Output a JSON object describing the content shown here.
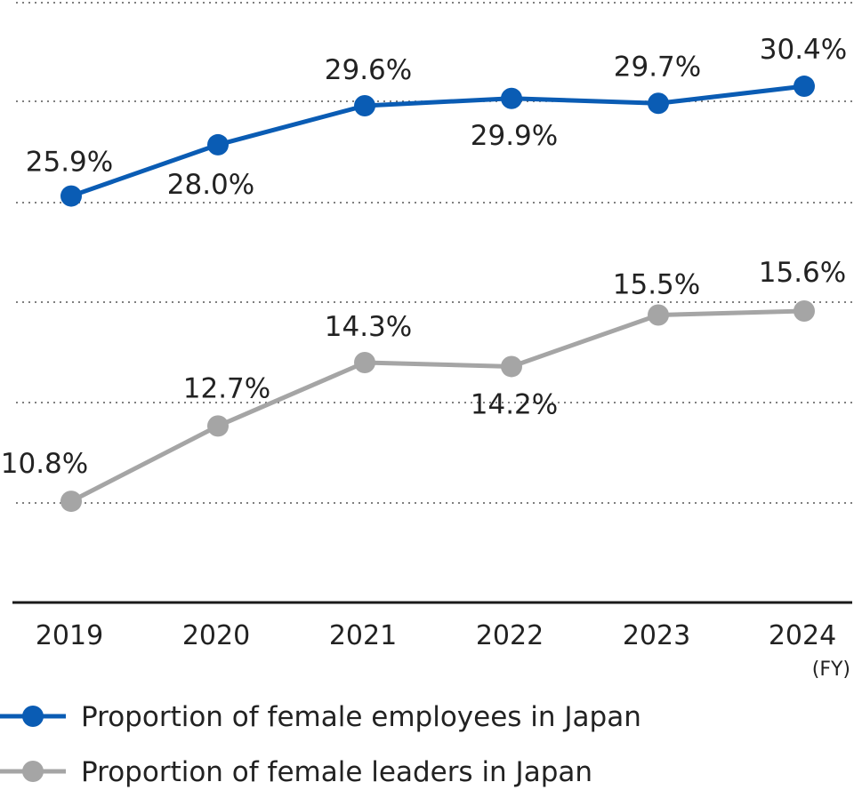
{
  "chart_data": {
    "type": "line",
    "categories": [
      "2019",
      "2020",
      "2021",
      "2022",
      "2023",
      "2024"
    ],
    "x_unit": "(FY)",
    "grid": "dotted horizontal",
    "legend_position": "bottom-left",
    "series": [
      {
        "name": "Proportion of female employees in Japan",
        "color": "#0a5cb4",
        "values": [
          25.9,
          28.0,
          29.6,
          29.9,
          29.7,
          30.4
        ],
        "labels": [
          "25.9%",
          "28.0%",
          "29.6%",
          "29.9%",
          "29.7%",
          "30.4%"
        ]
      },
      {
        "name": "Proportion of female leaders in Japan",
        "color": "#a5a5a5",
        "values": [
          10.8,
          12.7,
          14.3,
          14.2,
          15.5,
          15.6
        ],
        "labels": [
          "10.8%",
          "12.7%",
          "14.3%",
          "14.2%",
          "15.5%",
          "15.6%"
        ]
      }
    ]
  }
}
